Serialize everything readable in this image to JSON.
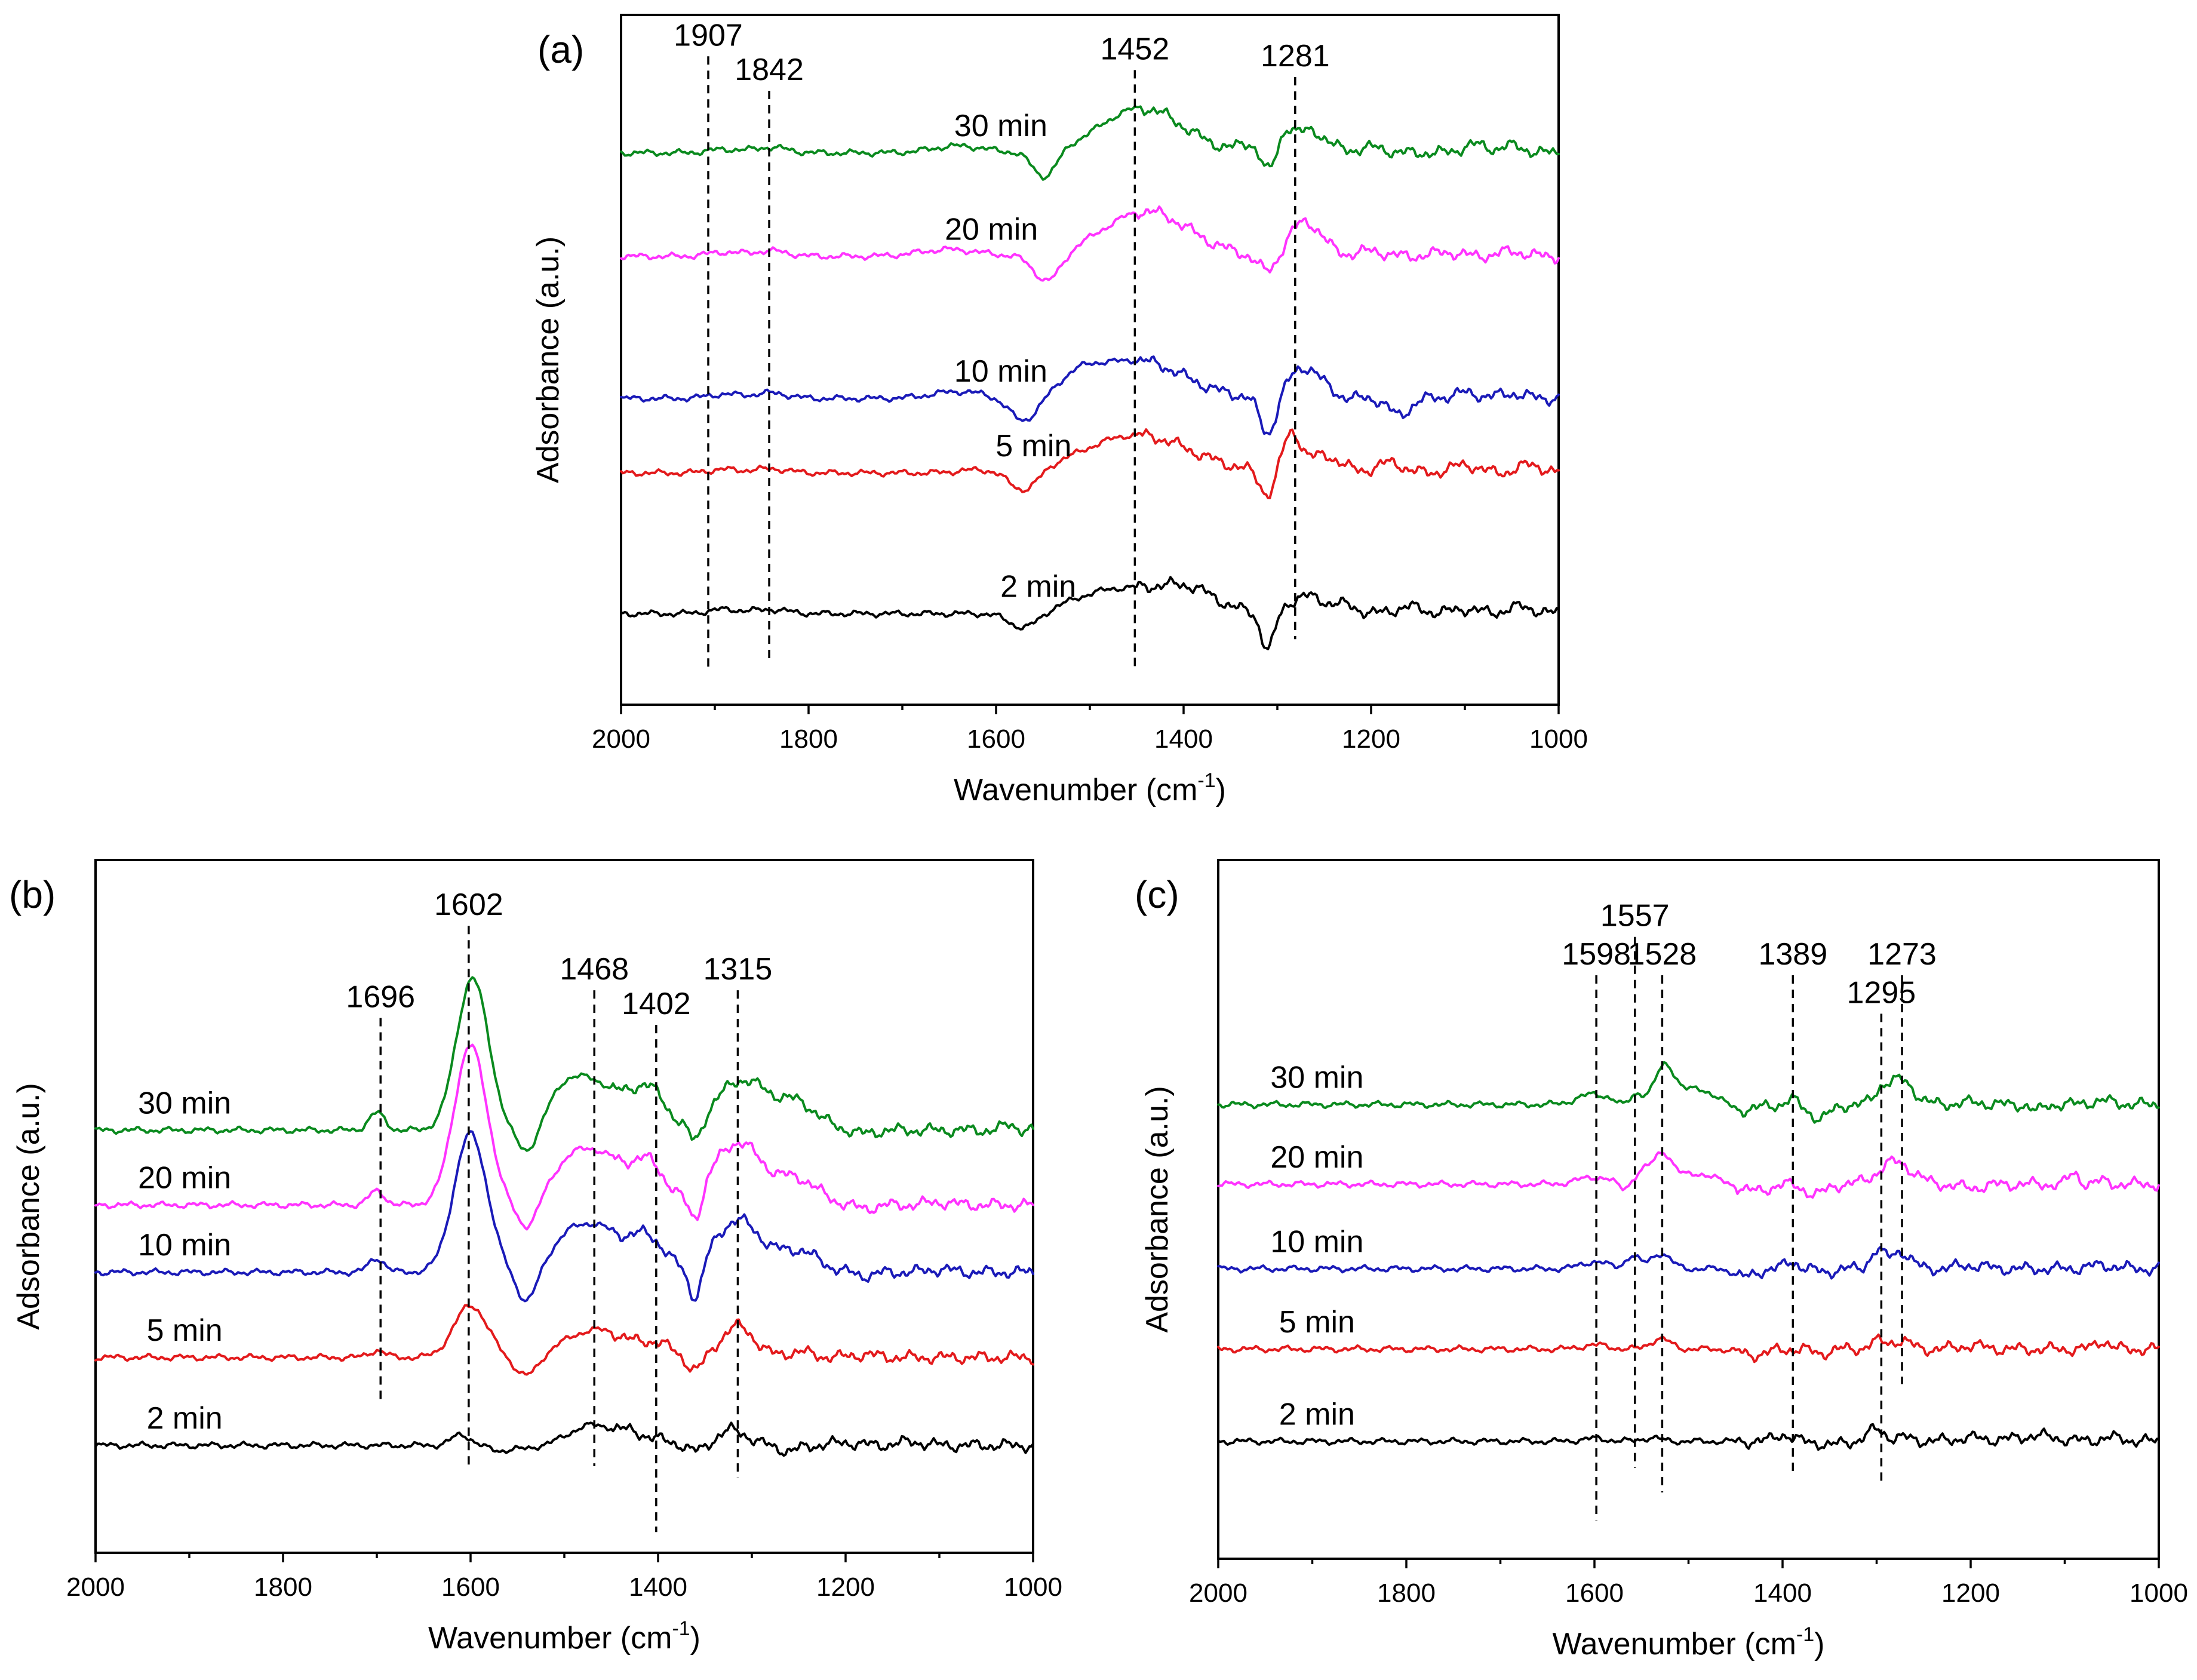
{
  "colors": {
    "2 min": "#000000",
    "5 min": "#e31a1c",
    "10 min": "#1a1ab8",
    "20 min": "#ff33ff",
    "30 min": "#0a8a1e"
  },
  "chart_data": [
    {
      "id": "a",
      "type": "line",
      "panel_label": "(a)",
      "xlabel_main": "Wavenumber (cm",
      "xlabel_sup": "-1",
      "xlabel_close": ")",
      "ylabel": "Adsorbance (a.u.)",
      "xlim": [
        2000,
        1000
      ],
      "ylim": [
        0,
        10
      ],
      "xticks": [
        2000,
        1800,
        1600,
        1400,
        1200,
        1000
      ],
      "xtick_labels": [
        "2000",
        "1800",
        "1600",
        "1400",
        "1200",
        "1000"
      ],
      "peaks": [
        {
          "label": "1907",
          "x": 1907,
          "y_top": 9.4,
          "y_bottom": 0.55
        },
        {
          "label": "1842",
          "x": 1842,
          "y_top": 8.9,
          "y_bottom": 0.65
        },
        {
          "label": "1452",
          "x": 1452,
          "y_top": 9.2,
          "y_bottom": 0.55
        },
        {
          "label": "1281",
          "x": 1281,
          "y_top": 9.1,
          "y_bottom": 0.95
        }
      ],
      "series": [
        {
          "name": "2 min",
          "label": "2 min",
          "label_x": 1555,
          "baseline": 1.32,
          "peaks": [
            [
              1890,
              0.06,
              25
            ],
            [
              1840,
              0.06,
              25
            ],
            [
              1570,
              -0.22,
              22
            ],
            [
              1500,
              0.12,
              45
            ],
            [
              1440,
              0.35,
              70
            ],
            [
              1390,
              0.18,
              35
            ],
            [
              1310,
              -0.55,
              10
            ],
            [
              1270,
              0.25,
              25
            ],
            [
              1230,
              0.12,
              20
            ],
            [
              1160,
              0.1,
              20
            ],
            [
              1100,
              0.07,
              20
            ],
            [
              1040,
              0.1,
              20
            ]
          ]
        },
        {
          "name": "5 min",
          "label": "5 min",
          "label_x": 1560,
          "baseline": 3.36,
          "peaks": [
            [
              1890,
              0.05,
              25
            ],
            [
              1840,
              0.06,
              25
            ],
            [
              1620,
              0.04,
              30
            ],
            [
              1570,
              -0.3,
              22
            ],
            [
              1450,
              0.55,
              80
            ],
            [
              1310,
              -0.35,
              12
            ],
            [
              1285,
              0.55,
              14
            ],
            [
              1250,
              0.25,
              25
            ],
            [
              1180,
              0.15,
              20
            ],
            [
              1100,
              0.12,
              20
            ],
            [
              1030,
              0.12,
              18
            ]
          ]
        },
        {
          "name": "10 min",
          "label": "10 min",
          "label_x": 1595,
          "baseline": 4.44,
          "peaks": [
            [
              1890,
              0.06,
              25
            ],
            [
              1840,
              0.08,
              25
            ],
            [
              1640,
              0.1,
              40
            ],
            [
              1570,
              -0.35,
              22
            ],
            [
              1510,
              0.2,
              30
            ],
            [
              1450,
              0.55,
              70
            ],
            [
              1310,
              -0.55,
              12
            ],
            [
              1270,
              0.45,
              25
            ],
            [
              1170,
              -0.25,
              15
            ],
            [
              1100,
              0.08,
              20
            ],
            [
              1050,
              0.07,
              20
            ]
          ]
        },
        {
          "name": "20 min",
          "label": "20 min",
          "label_x": 1605,
          "baseline": 6.5,
          "peaks": [
            [
              1890,
              0.06,
              25
            ],
            [
              1840,
              0.08,
              25
            ],
            [
              1650,
              0.1,
              45
            ],
            [
              1545,
              -0.4,
              20
            ],
            [
              1440,
              0.65,
              65
            ],
            [
              1310,
              -0.25,
              15
            ],
            [
              1270,
              0.5,
              25
            ],
            [
              1200,
              0.08,
              20
            ],
            [
              1120,
              0.06,
              20
            ],
            [
              1050,
              0.07,
              20
            ]
          ]
        },
        {
          "name": "30 min",
          "label": "30 min",
          "label_x": 1595,
          "baseline": 8.0,
          "peaks": [
            [
              1890,
              0.05,
              25
            ],
            [
              1840,
              0.08,
              25
            ],
            [
              1640,
              0.1,
              40
            ],
            [
              1548,
              -0.38,
              18
            ],
            [
              1445,
              0.65,
              62
            ],
            [
              1330,
              0.12,
              15
            ],
            [
              1310,
              -0.3,
              10
            ],
            [
              1290,
              0.25,
              10
            ],
            [
              1265,
              0.32,
              25
            ],
            [
              1200,
              0.08,
              20
            ],
            [
              1090,
              0.12,
              18
            ],
            [
              1050,
              0.1,
              18
            ]
          ]
        }
      ]
    },
    {
      "id": "b",
      "type": "line",
      "panel_label": "(b)",
      "xlabel_main": "Wavenumber (cm",
      "xlabel_sup": "-1",
      "xlabel_close": ")",
      "ylabel": "Adsorbance (a.u.)",
      "xlim": [
        2000,
        1000
      ],
      "ylim": [
        0,
        10
      ],
      "xticks": [
        2000,
        1800,
        1600,
        1400,
        1200,
        1000
      ],
      "xtick_labels": [
        "2000",
        "1800",
        "1600",
        "1400",
        "1200",
        "1000"
      ],
      "peaks": [
        {
          "label": "1696",
          "x": 1696,
          "y_top": 7.72,
          "y_bottom": 2.2
        },
        {
          "label": "1602",
          "x": 1602,
          "y_top": 9.05,
          "y_bottom": 1.25
        },
        {
          "label": "1468",
          "x": 1468,
          "y_top": 8.12,
          "y_bottom": 1.25
        },
        {
          "label": "1402",
          "x": 1402,
          "y_top": 7.62,
          "y_bottom": 0.3
        },
        {
          "label": "1315",
          "x": 1315,
          "y_top": 8.12,
          "y_bottom": 1.08
        }
      ],
      "series": [
        {
          "name": "2 min",
          "label": "2 min",
          "label_x": 1905,
          "baseline": 1.55,
          "peaks": [
            [
              1610,
              0.15,
              15
            ],
            [
              1570,
              -0.08,
              15
            ],
            [
              1540,
              -0.06,
              15
            ],
            [
              1480,
              0.1,
              20
            ],
            [
              1450,
              0.25,
              50
            ],
            [
              1360,
              -0.1,
              12
            ],
            [
              1320,
              0.22,
              22
            ],
            [
              1260,
              -0.08,
              15
            ],
            [
              1200,
              0.04,
              20
            ],
            [
              1130,
              0.05,
              20
            ]
          ]
        },
        {
          "name": "5 min",
          "label": "5 min",
          "label_x": 1905,
          "baseline": 2.82,
          "peaks": [
            [
              1700,
              0.1,
              12
            ],
            [
              1600,
              0.75,
              25
            ],
            [
              1540,
              -0.3,
              18
            ],
            [
              1465,
              0.4,
              50
            ],
            [
              1400,
              0.15,
              20
            ],
            [
              1360,
              -0.2,
              12
            ],
            [
              1315,
              0.45,
              25
            ],
            [
              1250,
              0.08,
              20
            ],
            [
              1180,
              0.04,
              20
            ]
          ]
        },
        {
          "name": "10 min",
          "label": "10 min",
          "label_x": 1905,
          "baseline": 4.05,
          "peaks": [
            [
              1700,
              0.2,
              12
            ],
            [
              1600,
              2.0,
              25
            ],
            [
              1540,
              -0.45,
              15
            ],
            [
              1500,
              0.25,
              25
            ],
            [
              1465,
              0.65,
              40
            ],
            [
              1410,
              0.45,
              25
            ],
            [
              1360,
              -0.5,
              10
            ],
            [
              1315,
              0.75,
              35
            ],
            [
              1250,
              0.3,
              30
            ],
            [
              1180,
              -0.05,
              15
            ],
            [
              1100,
              0.04,
              20
            ]
          ]
        },
        {
          "name": "20 min",
          "label": "20 min",
          "label_x": 1905,
          "baseline": 5.02,
          "peaks": [
            [
              1700,
              0.2,
              12
            ],
            [
              1600,
              2.3,
              25
            ],
            [
              1540,
              -0.35,
              15
            ],
            [
              1500,
              0.3,
              25
            ],
            [
              1465,
              0.75,
              40
            ],
            [
              1410,
              0.55,
              25
            ],
            [
              1360,
              -0.4,
              10
            ],
            [
              1315,
              0.9,
              38
            ],
            [
              1250,
              0.35,
              30
            ],
            [
              1180,
              -0.05,
              15
            ],
            [
              1100,
              0.04,
              20
            ]
          ]
        },
        {
          "name": "30 min",
          "label": "30 min",
          "label_x": 1905,
          "baseline": 6.1,
          "peaks": [
            [
              1700,
              0.25,
              12
            ],
            [
              1598,
              2.2,
              24
            ],
            [
              1540,
              -0.35,
              15
            ],
            [
              1500,
              0.4,
              25
            ],
            [
              1465,
              0.65,
              40
            ],
            [
              1410,
              0.55,
              25
            ],
            [
              1360,
              -0.3,
              10
            ],
            [
              1310,
              0.72,
              40
            ],
            [
              1250,
              0.35,
              30
            ],
            [
              1180,
              -0.05,
              15
            ],
            [
              1025,
              0.08,
              10
            ]
          ]
        }
      ]
    },
    {
      "id": "c",
      "type": "line",
      "panel_label": "(c)",
      "xlabel_main": "Wavenumber (cm",
      "xlabel_sup": "-1",
      "xlabel_close": ")",
      "ylabel": "Adsorbance (a.u.)",
      "xlim": [
        2000,
        1000
      ],
      "ylim": [
        0,
        10
      ],
      "xticks": [
        2000,
        1800,
        1600,
        1400,
        1200,
        1000
      ],
      "xtick_labels": [
        "2000",
        "1800",
        "1600",
        "1400",
        "1200",
        "1000"
      ],
      "peaks": [
        {
          "label": "1598",
          "x": 1598,
          "y_top": 8.35,
          "y_bottom": 0.55
        },
        {
          "label": "1557",
          "x": 1557,
          "y_top": 8.9,
          "y_bottom": 1.3
        },
        {
          "label": "1528",
          "x": 1528,
          "y_top": 8.35,
          "y_bottom": 0.95
        },
        {
          "label": "1389",
          "x": 1389,
          "y_top": 8.35,
          "y_bottom": 1.2
        },
        {
          "label": "1295",
          "x": 1295,
          "y_top": 7.8,
          "y_bottom": 1.1
        },
        {
          "label": "1273",
          "x": 1273,
          "y_top": 8.35,
          "y_bottom": 2.5
        }
      ],
      "series": [
        {
          "name": "2 min",
          "label": "2 min",
          "label_x": 1895,
          "baseline": 1.68,
          "peaks": [
            [
              1600,
              0.04,
              20
            ],
            [
              1540,
              0.05,
              15
            ],
            [
              1400,
              0.1,
              12
            ],
            [
              1350,
              -0.06,
              12
            ],
            [
              1300,
              0.18,
              12
            ],
            [
              1270,
              0.05,
              15
            ],
            [
              1200,
              0.05,
              25
            ],
            [
              1130,
              0.08,
              30
            ],
            [
              1050,
              0.05,
              20
            ]
          ]
        },
        {
          "name": "5 min",
          "label": "5 min",
          "label_x": 1895,
          "baseline": 3.0,
          "peaks": [
            [
              1600,
              0.06,
              20
            ],
            [
              1530,
              0.15,
              15
            ],
            [
              1430,
              -0.08,
              20
            ],
            [
              1360,
              -0.06,
              12
            ],
            [
              1300,
              0.1,
              12
            ],
            [
              1275,
              0.12,
              15
            ],
            [
              1200,
              0.05,
              20
            ],
            [
              1060,
              0.12,
              10
            ]
          ]
        },
        {
          "name": "10 min",
          "label": "10 min",
          "label_x": 1895,
          "baseline": 4.15,
          "peaks": [
            [
              1600,
              0.1,
              20
            ],
            [
              1560,
              0.18,
              10
            ],
            [
              1530,
              0.22,
              15
            ],
            [
              1440,
              -0.12,
              15
            ],
            [
              1390,
              0.1,
              10
            ],
            [
              1355,
              -0.05,
              12
            ],
            [
              1300,
              0.25,
              10
            ],
            [
              1275,
              0.25,
              15
            ],
            [
              1200,
              0.05,
              20
            ],
            [
              1060,
              0.05,
              20
            ]
          ]
        },
        {
          "name": "20 min",
          "label": "20 min",
          "label_x": 1895,
          "baseline": 5.36,
          "peaks": [
            [
              1600,
              0.1,
              25
            ],
            [
              1570,
              -0.08,
              8
            ],
            [
              1550,
              0.15,
              10
            ],
            [
              1528,
              0.45,
              15
            ],
            [
              1490,
              0.15,
              25
            ],
            [
              1430,
              -0.1,
              20
            ],
            [
              1365,
              -0.15,
              15
            ],
            [
              1280,
              0.32,
              25
            ],
            [
              1200,
              -0.05,
              20
            ],
            [
              1090,
              0.15,
              8
            ],
            [
              1060,
              0.04,
              10
            ]
          ]
        },
        {
          "name": "30 min",
          "label": "30 min",
          "label_x": 1895,
          "baseline": 6.5,
          "peaks": [
            [
              1600,
              0.15,
              25
            ],
            [
              1570,
              -0.05,
              8
            ],
            [
              1555,
              0.15,
              10
            ],
            [
              1525,
              0.55,
              15
            ],
            [
              1490,
              0.22,
              25
            ],
            [
              1440,
              -0.08,
              20
            ],
            [
              1390,
              0.07,
              8
            ],
            [
              1360,
              -0.2,
              15
            ],
            [
              1295,
              0.15,
              10
            ],
            [
              1275,
              0.35,
              20
            ],
            [
              1200,
              0.03,
              20
            ],
            [
              1130,
              -0.1,
              8
            ],
            [
              1060,
              0.05,
              20
            ]
          ]
        }
      ]
    }
  ]
}
